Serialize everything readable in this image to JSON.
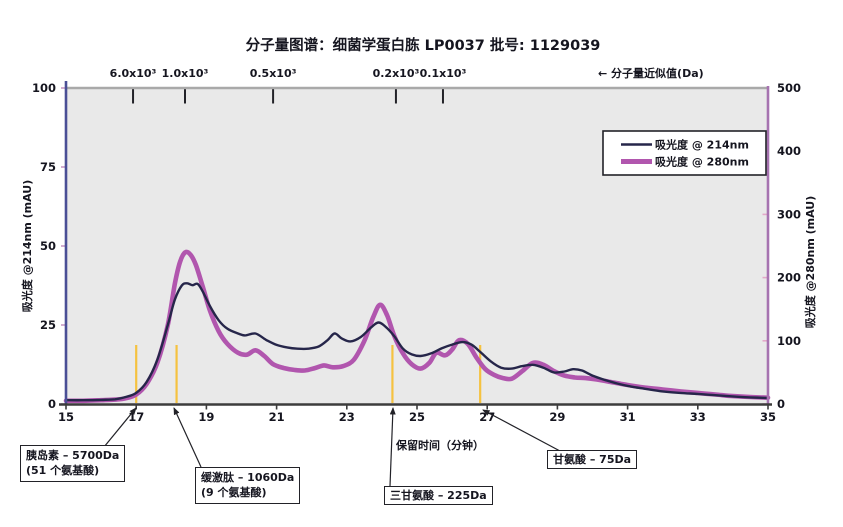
{
  "title": "分子量图谱：细菌学蛋白胨 LP0037  批号: 1129039",
  "top_note": "← 分子量近似值(Da)",
  "legend": {
    "items": [
      {
        "label": "吸光度 @ 214nm",
        "color": "#26264a"
      },
      {
        "label": "吸光度 @ 280nm",
        "color": "#b156ae"
      }
    ]
  },
  "axes": {
    "left_title": "吸光度 @214nm (mAU)",
    "right_title": "吸光度 @280nm (mAU)",
    "x_title": "保留时间（分钟）"
  },
  "annotations": [
    {
      "line1": "胰岛素 – 5700Da",
      "line2": "(51 个氨基酸)",
      "x": 17.0
    },
    {
      "line1": "缓激肽 – 1060Da",
      "line2": "(9 个氨基酸)",
      "x": 18.15
    },
    {
      "line1": "三甘氨酸 – 225Da",
      "line2": "",
      "x": 24.3
    },
    {
      "line1": "甘氨酸  – 75Da",
      "line2": "",
      "x": 26.8
    }
  ],
  "chart_data": {
    "type": "line",
    "title": "分子量图谱：细菌学蛋白胨 LP0037 批号: 1129039",
    "x_axis": {
      "label": "保留时间（分钟）",
      "range": [
        15,
        35
      ],
      "ticks": [
        15,
        17,
        19,
        21,
        23,
        25,
        27,
        29,
        31,
        33,
        35
      ]
    },
    "left_axis": {
      "label": "吸光度 @214nm (mAU)",
      "range": [
        0,
        100
      ],
      "ticks": [
        0,
        25,
        50,
        75,
        100
      ],
      "color": "#4a4f96"
    },
    "right_axis": {
      "label": "吸光度 @280nm (mAU)",
      "range": [
        0,
        500
      ],
      "ticks": [
        0,
        100,
        200,
        300,
        400,
        500
      ],
      "color": "#a673b0"
    },
    "top_axis": {
      "label": "分子量近似值(Da)",
      "ticks": [
        {
          "label": "6.0x10³",
          "x": 16.91
        },
        {
          "label": "1.0x10³",
          "x": 18.39
        },
        {
          "label": "0.5x10³",
          "x": 20.9
        },
        {
          "label": "0.2x10³",
          "x": 24.4
        },
        {
          "label": "0.1x10³",
          "x": 25.74
        }
      ]
    },
    "marker_lines": {
      "color": "#f5c240",
      "x": [
        17.0,
        18.15,
        24.3,
        26.8
      ]
    },
    "series": [
      {
        "name": "吸光度 @ 280nm",
        "axis": "right",
        "color": "#b156ae",
        "width": 4.6,
        "points": [
          [
            15.0,
            5
          ],
          [
            15.5,
            5
          ],
          [
            16.0,
            6
          ],
          [
            16.4,
            7
          ],
          [
            16.7,
            9
          ],
          [
            17.0,
            15
          ],
          [
            17.3,
            32
          ],
          [
            17.6,
            65
          ],
          [
            17.9,
            125
          ],
          [
            18.1,
            190
          ],
          [
            18.25,
            225
          ],
          [
            18.4,
            240
          ],
          [
            18.55,
            236
          ],
          [
            18.7,
            220
          ],
          [
            18.9,
            185
          ],
          [
            19.1,
            148
          ],
          [
            19.35,
            115
          ],
          [
            19.6,
            95
          ],
          [
            19.9,
            81
          ],
          [
            20.15,
            78
          ],
          [
            20.4,
            85
          ],
          [
            20.65,
            76
          ],
          [
            20.9,
            63
          ],
          [
            21.2,
            57
          ],
          [
            21.5,
            54
          ],
          [
            21.8,
            53
          ],
          [
            22.1,
            57
          ],
          [
            22.35,
            61
          ],
          [
            22.6,
            58
          ],
          [
            22.9,
            60
          ],
          [
            23.2,
            70
          ],
          [
            23.5,
            100
          ],
          [
            23.75,
            137
          ],
          [
            23.95,
            157
          ],
          [
            24.15,
            140
          ],
          [
            24.35,
            108
          ],
          [
            24.6,
            80
          ],
          [
            24.85,
            63
          ],
          [
            25.1,
            56
          ],
          [
            25.35,
            65
          ],
          [
            25.55,
            81
          ],
          [
            25.8,
            77
          ],
          [
            26.0,
            86
          ],
          [
            26.2,
            101
          ],
          [
            26.45,
            95
          ],
          [
            26.7,
            73
          ],
          [
            26.95,
            55
          ],
          [
            27.2,
            46
          ],
          [
            27.45,
            41
          ],
          [
            27.7,
            40
          ],
          [
            28.0,
            52
          ],
          [
            28.3,
            65
          ],
          [
            28.6,
            62
          ],
          [
            28.9,
            52
          ],
          [
            29.2,
            45
          ],
          [
            29.5,
            42
          ],
          [
            29.8,
            41
          ],
          [
            30.1,
            39
          ],
          [
            30.5,
            35
          ],
          [
            31.0,
            30
          ],
          [
            31.5,
            26
          ],
          [
            32.0,
            23
          ],
          [
            32.5,
            20
          ],
          [
            33.0,
            17.5
          ],
          [
            33.5,
            15
          ],
          [
            34.0,
            12.5
          ],
          [
            34.5,
            11
          ],
          [
            35.0,
            10
          ]
        ]
      },
      {
        "name": "吸光度 @ 214nm",
        "axis": "left",
        "color": "#26264a",
        "width": 2.4,
        "points": [
          [
            15.0,
            1.2
          ],
          [
            15.5,
            1.2
          ],
          [
            16.0,
            1.3
          ],
          [
            16.4,
            1.5
          ],
          [
            16.7,
            2.2
          ],
          [
            17.0,
            3.5
          ],
          [
            17.3,
            7
          ],
          [
            17.6,
            14
          ],
          [
            17.9,
            25
          ],
          [
            18.1,
            33
          ],
          [
            18.3,
            37.5
          ],
          [
            18.45,
            38.2
          ],
          [
            18.6,
            37.6
          ],
          [
            18.75,
            38
          ],
          [
            18.9,
            35.5
          ],
          [
            19.1,
            31
          ],
          [
            19.35,
            26.5
          ],
          [
            19.6,
            23.8
          ],
          [
            19.9,
            22.3
          ],
          [
            20.1,
            21.7
          ],
          [
            20.4,
            22.3
          ],
          [
            20.7,
            20.3
          ],
          [
            21.0,
            18.7
          ],
          [
            21.3,
            17.9
          ],
          [
            21.6,
            17.5
          ],
          [
            21.9,
            17.5
          ],
          [
            22.2,
            18.2
          ],
          [
            22.45,
            20.2
          ],
          [
            22.65,
            22.3
          ],
          [
            22.85,
            20.8
          ],
          [
            23.1,
            19.8
          ],
          [
            23.4,
            21.2
          ],
          [
            23.7,
            24.3
          ],
          [
            23.9,
            25.8
          ],
          [
            24.1,
            24.5
          ],
          [
            24.35,
            21.5
          ],
          [
            24.6,
            17.5
          ],
          [
            24.85,
            15.7
          ],
          [
            25.1,
            15.2
          ],
          [
            25.4,
            16
          ],
          [
            25.7,
            17.6
          ],
          [
            26.0,
            18.8
          ],
          [
            26.3,
            19.6
          ],
          [
            26.55,
            18.8
          ],
          [
            26.8,
            16.5
          ],
          [
            27.1,
            13.5
          ],
          [
            27.4,
            11.5
          ],
          [
            27.7,
            11.2
          ],
          [
            28.0,
            12
          ],
          [
            28.3,
            12.4
          ],
          [
            28.6,
            11.5
          ],
          [
            28.9,
            10
          ],
          [
            29.2,
            10.3
          ],
          [
            29.45,
            11
          ],
          [
            29.7,
            10.6
          ],
          [
            30.0,
            9
          ],
          [
            30.3,
            7.8
          ],
          [
            30.7,
            6.5
          ],
          [
            31.1,
            5.5
          ],
          [
            31.5,
            4.8
          ],
          [
            32.0,
            4
          ],
          [
            32.5,
            3.5
          ],
          [
            33.0,
            3.2
          ],
          [
            33.5,
            2.8
          ],
          [
            34.0,
            2.4
          ],
          [
            34.5,
            2.1
          ],
          [
            35.0,
            1.9
          ]
        ]
      }
    ]
  }
}
